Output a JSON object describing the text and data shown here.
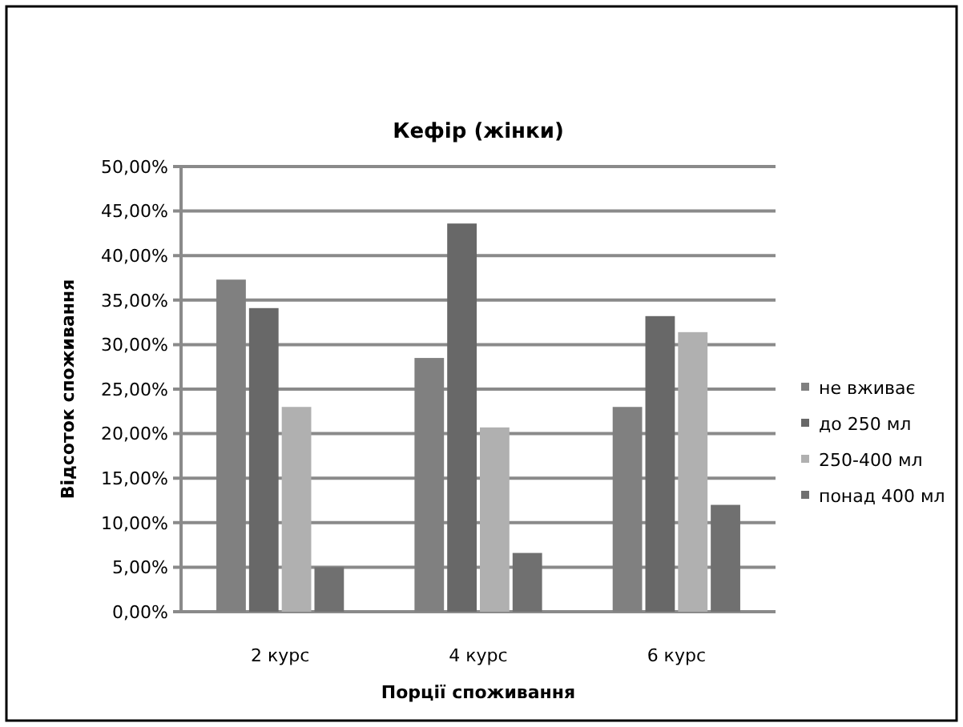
{
  "chart_data": {
    "type": "bar",
    "title": "Кефір (жінки)",
    "xlabel": "Порції  споживання",
    "ylabel": "Відсоток  споживання",
    "categories": [
      "2 курс",
      "4 курс",
      "6 курс"
    ],
    "series": [
      {
        "name": "не вживає",
        "color": "#808080",
        "values": [
          37.3,
          28.5,
          23.0
        ]
      },
      {
        "name": "до 250 мл",
        "color": "#686868",
        "values": [
          34.1,
          43.6,
          33.2
        ]
      },
      {
        "name": "250-400 мл",
        "color": "#b0b0b0",
        "values": [
          23.0,
          20.7,
          31.4
        ]
      },
      {
        "name": "понад 400 мл",
        "color": "#707070",
        "values": [
          5.0,
          6.6,
          12.0
        ]
      }
    ],
    "ylim": [
      0,
      50
    ],
    "yticks": [
      {
        "value": 0,
        "label": "0,00%"
      },
      {
        "value": 5,
        "label": "5,00%"
      },
      {
        "value": 10,
        "label": "10,00%"
      },
      {
        "value": 15,
        "label": "15,00%"
      },
      {
        "value": 20,
        "label": "20,00%"
      },
      {
        "value": 25,
        "label": "25,00%"
      },
      {
        "value": 30,
        "label": "30,00%"
      },
      {
        "value": 35,
        "label": "35,00%"
      },
      {
        "value": 40,
        "label": "40,00%"
      },
      {
        "value": 45,
        "label": "45,00%"
      },
      {
        "value": 50,
        "label": "50,00%"
      }
    ],
    "grid": "y",
    "legend": "right"
  }
}
